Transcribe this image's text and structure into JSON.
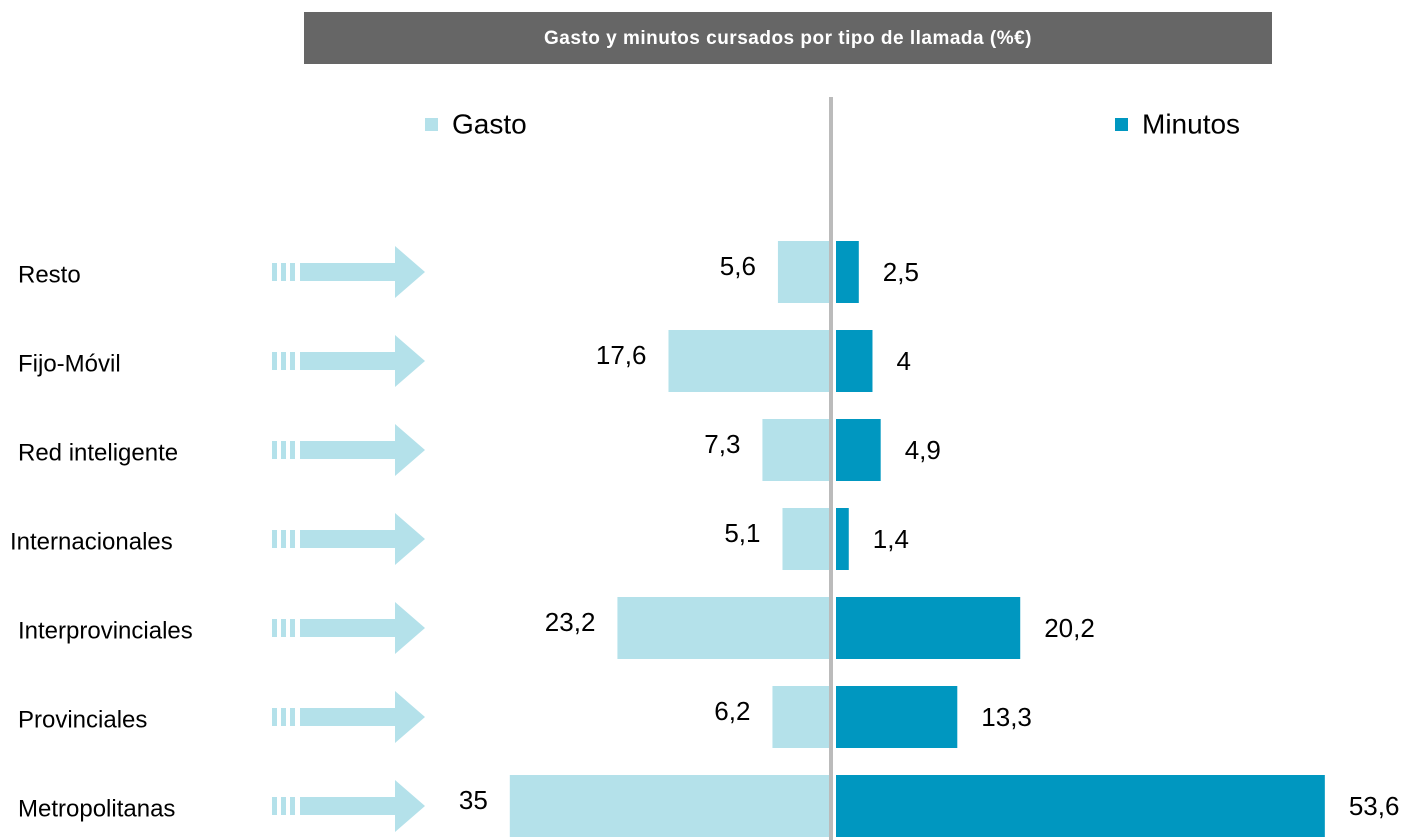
{
  "chart_data": {
    "type": "butterfly",
    "title": "Gasto  y minutos cursados por tipo de llamada (%€)",
    "categories": [
      "Resto",
      "Fijo-Móvil",
      "Red inteligente",
      "Internacionales",
      "Interprovinciales",
      "Provinciales",
      "Metropolitanas"
    ],
    "series": [
      {
        "name": "Gasto",
        "color": "#b4e1ea",
        "values": [
          5.6,
          17.6,
          7.3,
          5.1,
          23.2,
          6.2,
          35
        ],
        "value_labels": [
          "5,6",
          "17,6",
          "7,3",
          "5,1",
          "23,2",
          "6,2",
          "35"
        ]
      },
      {
        "name": "Minutos",
        "color": "#0097c0",
        "values": [
          2.5,
          4,
          4.9,
          1.4,
          20.2,
          13.3,
          53.6
        ],
        "value_labels": [
          "2,5",
          "4",
          "4,9",
          "1,4",
          "20,2",
          "13,3",
          "53,6"
        ]
      }
    ]
  }
}
